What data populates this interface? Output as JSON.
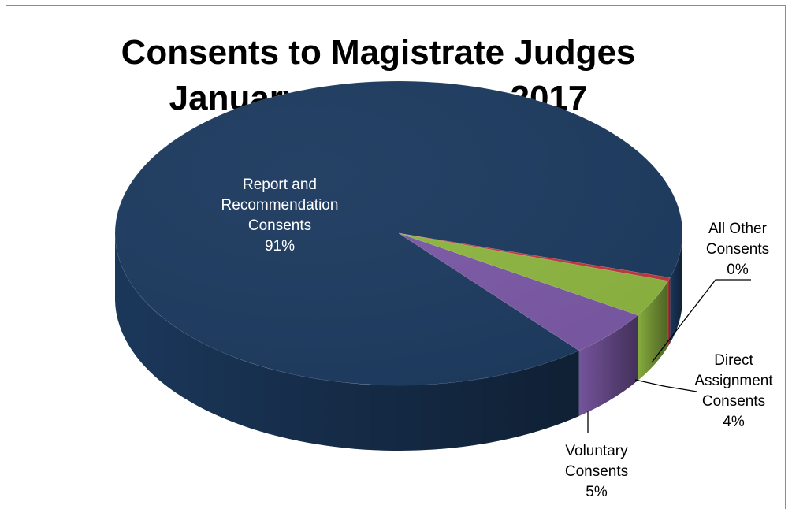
{
  "chart_data": {
    "type": "pie",
    "title": "Consents to Magistrate Judges",
    "subtitle": "January - December 2017",
    "slices": [
      {
        "label_lines": [
          "Report and",
          "Recommendation",
          "Consents"
        ],
        "percent_label": "91%",
        "value": 91,
        "color": "#1c3a5f"
      },
      {
        "label_lines": [
          "Voluntary",
          "Consents"
        ],
        "percent_label": "5%",
        "value": 5,
        "color": "#7a58a4"
      },
      {
        "label_lines": [
          "Direct",
          "Assignment",
          "Consents"
        ],
        "percent_label": "4%",
        "value": 4,
        "color": "#8db541"
      },
      {
        "label_lines": [
          "All Other",
          "Consents"
        ],
        "percent_label": "0%",
        "value": 0.35,
        "color": "#c0393b"
      }
    ]
  }
}
